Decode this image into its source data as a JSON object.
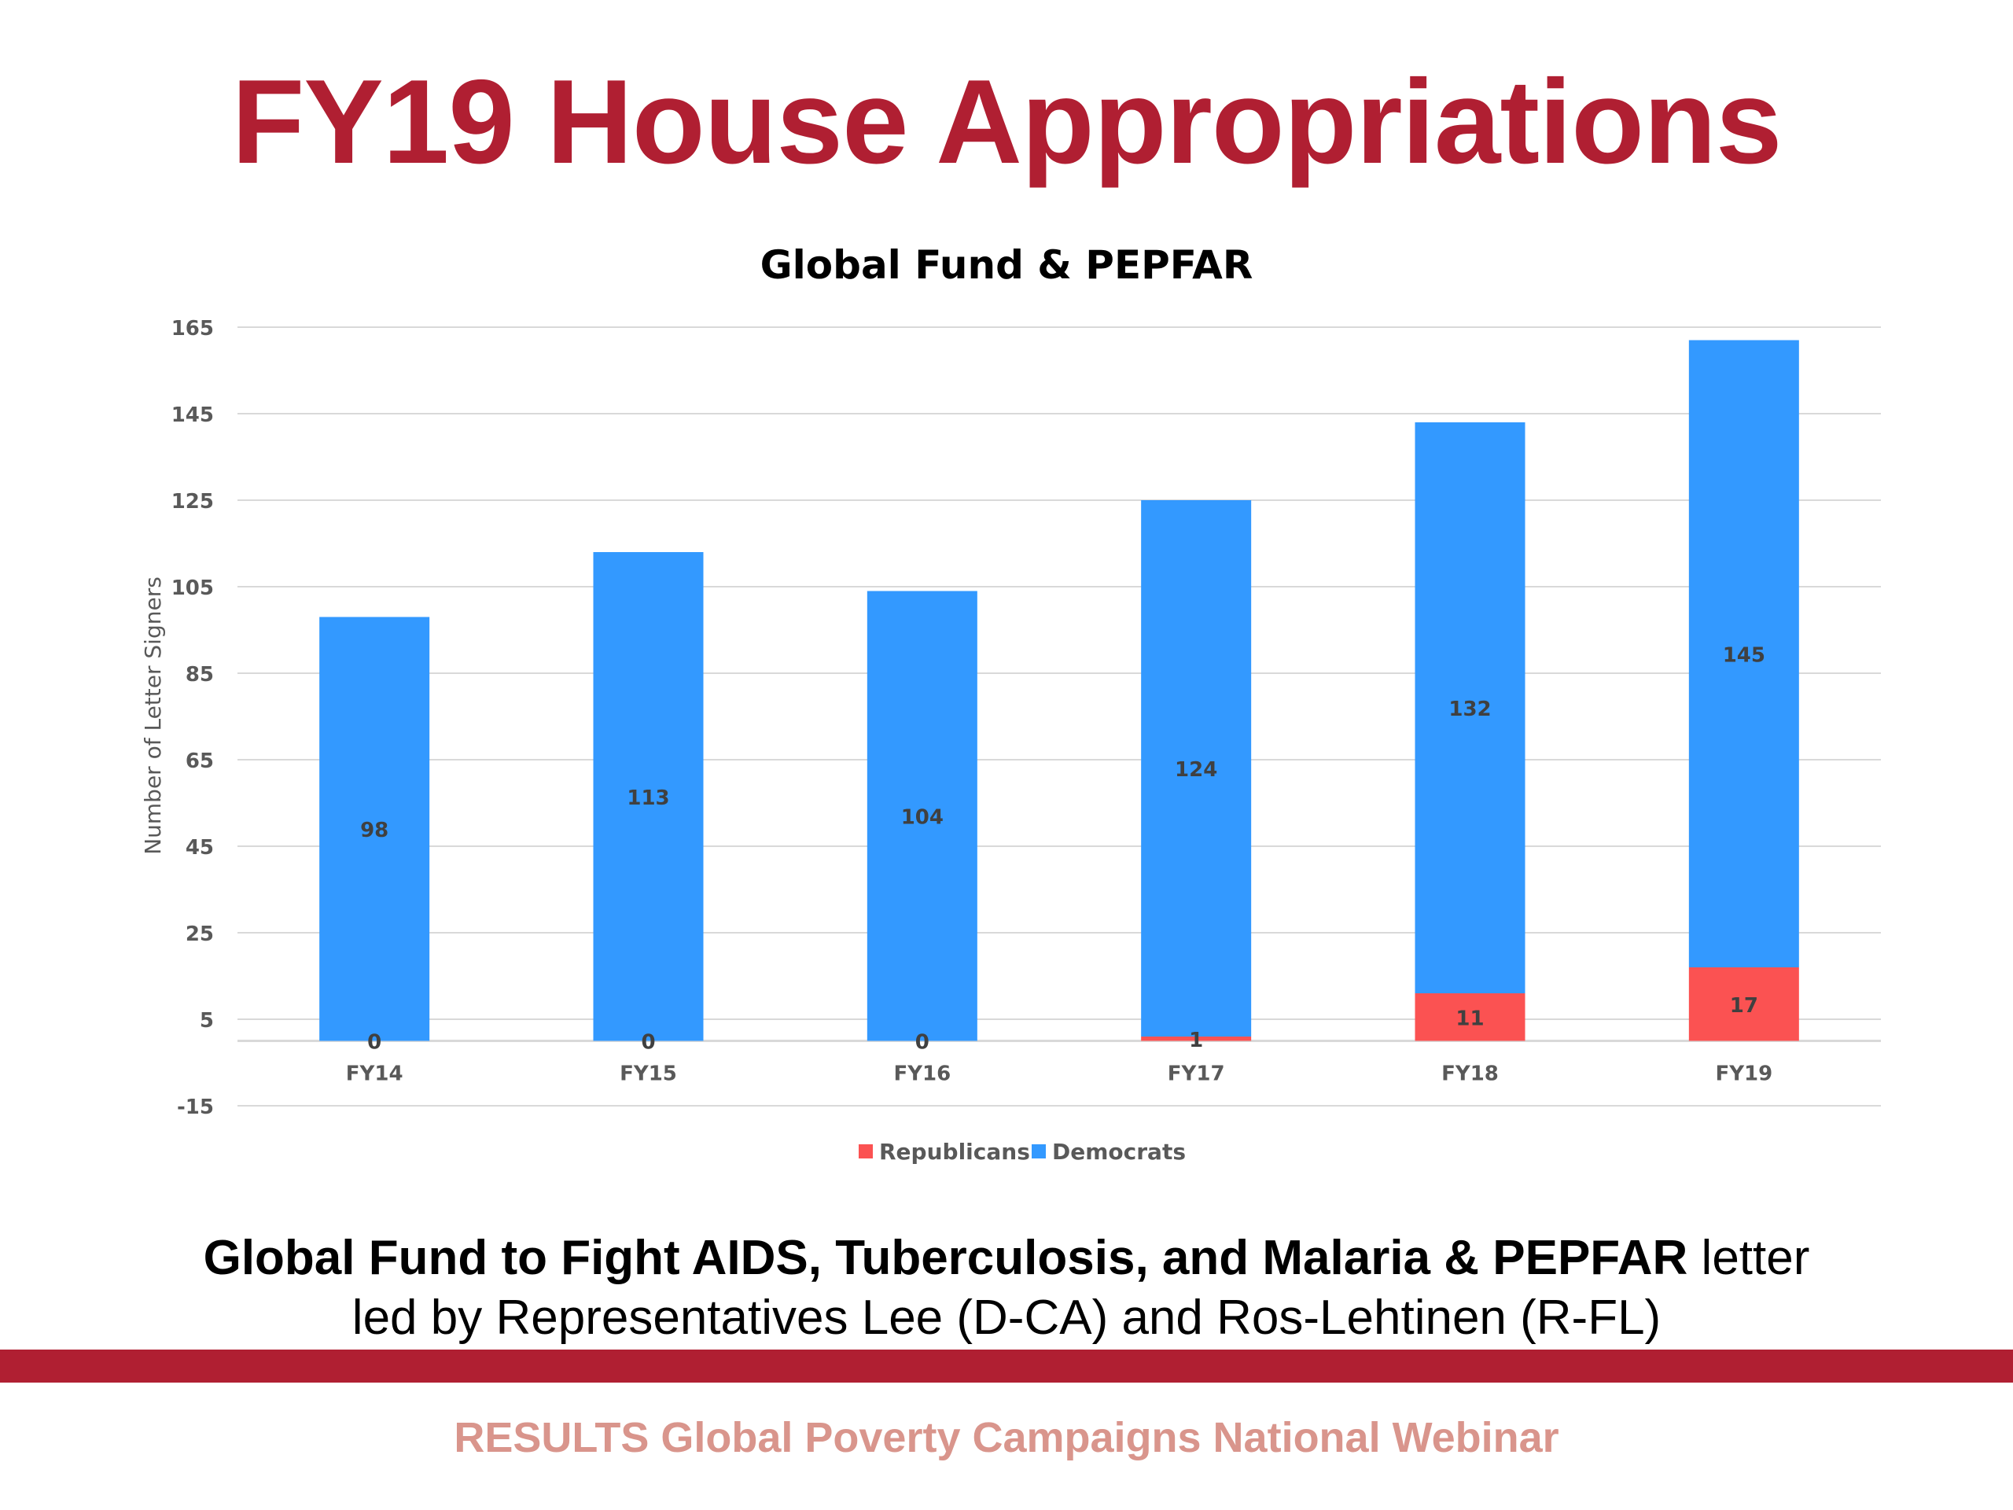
{
  "slide": {
    "title": "FY19 House Appropriations",
    "caption_bold": "Global Fund to Fight AIDS, Tuberculosis, and Malaria & PEPFAR",
    "caption_rest": " letter",
    "caption_line2": "led by Representatives Lee (D-CA) and Ros-Lehtinen (R-FL)",
    "footer": "RESULTS Global Poverty Campaigns National Webinar"
  },
  "chart_data": {
    "type": "bar",
    "stacked": true,
    "title": "Global Fund & PEPFAR",
    "xlabel": "",
    "ylabel": "Number of Letter Signers",
    "categories": [
      "FY14",
      "FY15",
      "FY16",
      "FY17",
      "FY18",
      "FY19"
    ],
    "series": [
      {
        "name": "Republicans",
        "color": "#fb5252",
        "values": [
          0,
          0,
          0,
          1,
          11,
          17
        ]
      },
      {
        "name": "Democrats",
        "color": "#3399ff",
        "values": [
          98,
          113,
          104,
          124,
          132,
          145
        ]
      }
    ],
    "yticks": [
      165,
      145,
      125,
      105,
      85,
      65,
      45,
      25,
      5,
      -15
    ],
    "ylim": [
      -15,
      165
    ],
    "grid": true,
    "legend_position": "bottom"
  },
  "colors": {
    "title_red": "#b01f32",
    "footer_text": "#d9958c",
    "republicans": "#fb5252",
    "democrats": "#3399ff",
    "gridline": "#d9d9d9"
  }
}
